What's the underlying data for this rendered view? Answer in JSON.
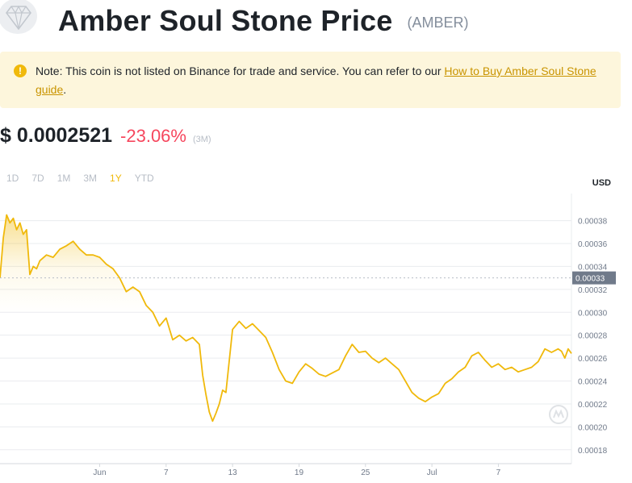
{
  "header": {
    "title": "Amber Soul Stone Price",
    "ticker": "(AMBER)"
  },
  "note": {
    "text": "Note: This coin is not listed on Binance for trade and service. You can refer to our ",
    "link_text": "How to Buy Amber Soul Stone guide",
    "suffix": "."
  },
  "price": {
    "value": "$ 0.0002521",
    "change": "-23.06%",
    "period": "(3M)"
  },
  "ranges": [
    "1D",
    "7D",
    "1M",
    "3M",
    "1Y",
    "YTD"
  ],
  "active_range": "1Y",
  "colors": {
    "line": "#f0b90b",
    "negative": "#f6465d",
    "note_bg": "#fdf6dc"
  },
  "chart_data": {
    "type": "area",
    "ylabel": "USD",
    "ylim": [
      0.00017,
      0.000398
    ],
    "yticks": [
      {
        "value": 0.00038,
        "label": "0.00038"
      },
      {
        "value": 0.00036,
        "label": "0.00036"
      },
      {
        "value": 0.00034,
        "label": "0.00034"
      },
      {
        "value": 0.00032,
        "label": "0.00032"
      },
      {
        "value": 0.0003,
        "label": "0.00030"
      },
      {
        "value": 0.00028,
        "label": "0.00028"
      },
      {
        "value": 0.00026,
        "label": "0.00026"
      },
      {
        "value": 0.00024,
        "label": "0.00024"
      },
      {
        "value": 0.00022,
        "label": "0.00022"
      },
      {
        "value": 0.0002,
        "label": "0.00020"
      },
      {
        "value": 0.00018,
        "label": "0.00018"
      }
    ],
    "xlim": [
      0,
      86
    ],
    "xticks": [
      {
        "value": 15,
        "label": "Jun"
      },
      {
        "value": 25,
        "label": "7"
      },
      {
        "value": 35,
        "label": "13"
      },
      {
        "value": 45,
        "label": "19"
      },
      {
        "value": 55,
        "label": "25"
      },
      {
        "value": 65,
        "label": "Jul"
      },
      {
        "value": 75,
        "label": "7"
      }
    ],
    "reference": {
      "value": 0.00033,
      "label": "0.00033"
    },
    "series": [
      {
        "x": [
          0,
          0.5,
          1,
          1.5,
          2,
          2.5,
          3,
          3.5,
          4,
          4.5,
          5,
          5.5,
          6,
          7,
          8,
          9,
          10,
          11,
          12,
          13,
          14,
          15,
          16,
          17,
          18,
          19,
          20,
          21,
          22,
          23,
          24,
          25,
          26,
          27,
          28,
          29,
          30,
          30.5,
          31,
          31.5,
          32,
          32.5,
          33,
          33.5,
          34,
          35,
          36,
          37,
          38,
          39,
          40,
          41,
          42,
          43,
          44,
          45,
          46,
          47,
          48,
          49,
          50,
          51,
          52,
          53,
          54,
          55,
          56,
          57,
          58,
          59,
          60,
          61,
          62,
          63,
          64,
          65,
          66,
          67,
          68,
          69,
          70,
          71,
          72,
          73,
          74,
          75,
          76,
          77,
          78,
          79,
          80,
          81,
          82,
          83,
          84,
          84.5,
          85,
          85.5,
          86
        ],
        "values": [
          0.00033,
          0.000365,
          0.000385,
          0.000378,
          0.000382,
          0.000372,
          0.000378,
          0.000368,
          0.000372,
          0.000333,
          0.00034,
          0.000338,
          0.000345,
          0.00035,
          0.000348,
          0.000355,
          0.000358,
          0.000362,
          0.000355,
          0.00035,
          0.00035,
          0.000348,
          0.000342,
          0.000338,
          0.00033,
          0.000318,
          0.000322,
          0.000318,
          0.000306,
          0.0003,
          0.000288,
          0.000295,
          0.000276,
          0.00028,
          0.000275,
          0.000278,
          0.000272,
          0.000245,
          0.000228,
          0.000213,
          0.000205,
          0.000212,
          0.00022,
          0.000232,
          0.00023,
          0.000285,
          0.000292,
          0.000286,
          0.00029,
          0.000284,
          0.000278,
          0.000265,
          0.00025,
          0.00024,
          0.000238,
          0.000248,
          0.000255,
          0.000251,
          0.000246,
          0.000244,
          0.000247,
          0.00025,
          0.000262,
          0.000272,
          0.000265,
          0.000266,
          0.00026,
          0.000256,
          0.00026,
          0.000255,
          0.00025,
          0.00024,
          0.00023,
          0.000225,
          0.000222,
          0.000226,
          0.000229,
          0.000238,
          0.000242,
          0.000248,
          0.000252,
          0.000262,
          0.000265,
          0.000258,
          0.000252,
          0.000255,
          0.00025,
          0.000252,
          0.000248,
          0.00025,
          0.000252,
          0.000257,
          0.000268,
          0.000265,
          0.000268,
          0.000266,
          0.00026,
          0.000268,
          0.000264
        ]
      }
    ]
  }
}
